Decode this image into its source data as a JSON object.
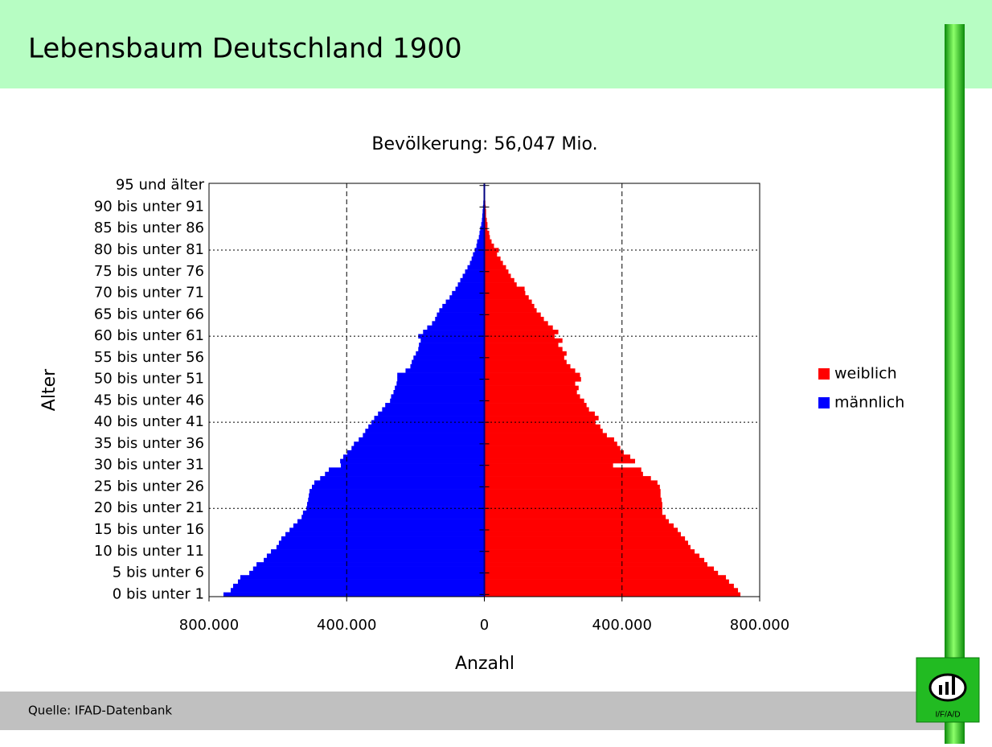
{
  "header": {
    "title": "Lebensbaum Deutschland 1900"
  },
  "footer": {
    "source": "Quelle: IFAD-Datenbank",
    "logo": "I/F/A/D"
  },
  "chart_data": {
    "type": "pyramid",
    "title": "Bevölkerung: 56,047 Mio.",
    "x_label": "Anzahl",
    "y_label": "Alter",
    "categories": [
      "0 bis unter 1",
      null,
      null,
      null,
      null,
      "5 bis unter 6",
      null,
      null,
      null,
      null,
      "10 bis unter 11",
      null,
      null,
      null,
      null,
      "15 bis unter 16",
      null,
      null,
      null,
      null,
      "20 bis unter 21",
      null,
      null,
      null,
      null,
      "25 bis unter 26",
      null,
      null,
      null,
      null,
      "30 bis unter 31",
      null,
      null,
      null,
      null,
      "35 bis unter 36",
      null,
      null,
      null,
      null,
      "40 bis unter 41",
      null,
      null,
      null,
      null,
      "45 bis unter 46",
      null,
      null,
      null,
      null,
      "50 bis unter 51",
      null,
      null,
      null,
      null,
      "55 bis unter 56",
      null,
      null,
      null,
      null,
      "60 bis unter 61",
      null,
      null,
      null,
      null,
      "65 bis unter 66",
      null,
      null,
      null,
      null,
      "70 bis unter 71",
      null,
      null,
      null,
      null,
      "75 bis unter 76",
      null,
      null,
      null,
      null,
      "80 bis unter 81",
      null,
      null,
      null,
      null,
      "85 bis unter 86",
      null,
      null,
      null,
      null,
      "90 bis unter 91",
      null,
      null,
      null,
      null,
      "95 und älter"
    ],
    "series": [
      {
        "name": "weiblich",
        "color": "#ff0000",
        "values": [
          744000,
          737000,
          725000,
          711000,
          702000,
          679000,
          667000,
          648000,
          639000,
          625000,
          611000,
          599000,
          592000,
          583000,
          571000,
          562000,
          550000,
          536000,
          527000,
          517000,
          517000,
          517000,
          515000,
          512000,
          512000,
          510000,
          503000,
          484000,
          461000,
          456000,
          374000,
          438000,
          424000,
          405000,
          395000,
          386000,
          377000,
          356000,
          344000,
          337000,
          323000,
          332000,
          321000,
          304000,
          297000,
          290000,
          278000,
          269000,
          274000,
          264000,
          281000,
          278000,
          264000,
          250000,
          239000,
          232000,
          239000,
          227000,
          215000,
          227000,
          204000,
          215000,
          199000,
          185000,
          173000,
          164000,
          152000,
          145000,
          138000,
          129000,
          119000,
          117000,
          94000,
          87000,
          77000,
          70000,
          63000,
          54000,
          47000,
          37000,
          42000,
          28000,
          21000,
          16000,
          14000,
          9000,
          9000,
          7000,
          5000,
          5000,
          4000,
          3000,
          2000,
          2000,
          1000,
          1000
        ]
      },
      {
        "name": "männlich",
        "color": "#0000ff",
        "values": [
          -758000,
          -737000,
          -730000,
          -716000,
          -709000,
          -683000,
          -672000,
          -662000,
          -641000,
          -632000,
          -620000,
          -604000,
          -597000,
          -590000,
          -578000,
          -566000,
          -555000,
          -543000,
          -531000,
          -527000,
          -517000,
          -515000,
          -512000,
          -510000,
          -508000,
          -501000,
          -494000,
          -477000,
          -463000,
          -452000,
          -417000,
          -419000,
          -410000,
          -398000,
          -386000,
          -379000,
          -365000,
          -353000,
          -346000,
          -337000,
          -328000,
          -320000,
          -309000,
          -297000,
          -288000,
          -274000,
          -271000,
          -264000,
          -260000,
          -255000,
          -253000,
          -253000,
          -229000,
          -215000,
          -211000,
          -206000,
          -199000,
          -192000,
          -190000,
          -185000,
          -192000,
          -178000,
          -166000,
          -152000,
          -143000,
          -138000,
          -131000,
          -122000,
          -112000,
          -101000,
          -94000,
          -84000,
          -77000,
          -70000,
          -63000,
          -56000,
          -49000,
          -42000,
          -37000,
          -33000,
          -28000,
          -23000,
          -21000,
          -16000,
          -14000,
          -12000,
          -9000,
          -7000,
          -6000,
          -5000,
          -4000,
          -3000,
          -2000,
          -2000,
          -1000,
          -1000
        ]
      }
    ],
    "xlim": [
      -800000,
      800000
    ],
    "xticks": [
      {
        "value": -800000,
        "label": "800.000"
      },
      {
        "value": -400000,
        "label": "400.000"
      },
      0,
      {
        "value": 400000,
        "label": "400.000"
      },
      {
        "value": 800000,
        "label": "800.000"
      }
    ],
    "grid": true,
    "legend": "right"
  }
}
